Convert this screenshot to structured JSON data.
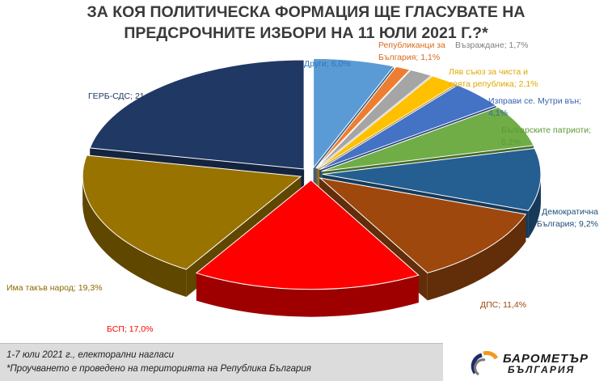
{
  "title": {
    "line1": "ЗА КОЯ ПОЛИТИЧЕСКА ФОРМАЦИЯ ЩЕ ГЛАСУВАТЕ НА",
    "line2": "ПРЕДСРОЧНИТЕ ИЗБОРИ НА 11 ЮЛИ 2021 Г.?*"
  },
  "footer": {
    "line1": "1-7 юли 2021 г., електорални нагласи",
    "line2": "*Проучването е проведено на територията на Република България"
  },
  "logo": {
    "line1": "БАРОМЕТЪР",
    "line2": "БЪЛГАРИЯ",
    "colors": [
      "#1f2a6b",
      "#f29a1d",
      "#7a7a7a"
    ]
  },
  "chart_data": {
    "type": "pie",
    "style": "3d-exploded",
    "unit": "%",
    "slices": [
      {
        "label": "Други",
        "value": 6.0,
        "color": "#5b9bd5",
        "label_color": "#2e75b6",
        "label_text": [
          "Други; 6,0%"
        ]
      },
      {
        "label": "Републиканци за България",
        "value": 1.1,
        "color": "#ed7d31",
        "label_color": "#d86a1c",
        "label_text": [
          "Републиканци  за",
          "България;  1,1%"
        ]
      },
      {
        "label": "Възраждане",
        "value": 1.7,
        "color": "#a5a5a5",
        "label_color": "#808080",
        "label_text": [
          "Възраждане; 1,7%"
        ]
      },
      {
        "label": "Ляв съюз за чиста и свята република",
        "value": 2.1,
        "color": "#ffc000",
        "label_color": "#e0a800",
        "label_text": [
          "Ляв съюз за чиста и",
          "свята  република;  2,1%"
        ]
      },
      {
        "label": "Изправи се. Мутри вън",
        "value": 4.1,
        "color": "#4472c4",
        "label_color": "#3a62b0",
        "label_text": [
          "Изправи се. Мутри вън;",
          "4,1%"
        ]
      },
      {
        "label": "Българските патриоти",
        "value": 6.2,
        "color": "#70ad47",
        "label_color": "#5b9a35",
        "label_text": [
          "Българските патриоти;",
          "6,2%"
        ]
      },
      {
        "label": "Демократична България",
        "value": 9.2,
        "color": "#255e91",
        "label_color": "#1f4e79",
        "label_text": [
          "Демократична",
          "България;  9,2%"
        ]
      },
      {
        "label": "ДПС",
        "value": 11.4,
        "color": "#9e480e",
        "label_color": "#9e480e",
        "label_text": [
          "ДПС; 11,4%"
        ]
      },
      {
        "label": "БСП",
        "value": 17.0,
        "color": "#ff0000",
        "label_color": "#ff0000",
        "label_text": [
          "БСП; 17,0%"
        ]
      },
      {
        "label": "Има такъв народ",
        "value": 19.3,
        "color": "#997300",
        "label_color": "#8a6a00",
        "label_text": [
          "Има такъв  народ;  19,3%"
        ]
      },
      {
        "label": "ГЕРБ-СДС",
        "value": 21.9,
        "color": "#203864",
        "label_color": "#1f3864",
        "label_text": [
          "ГЕРБ-СДС; 21,9%"
        ]
      }
    ]
  }
}
